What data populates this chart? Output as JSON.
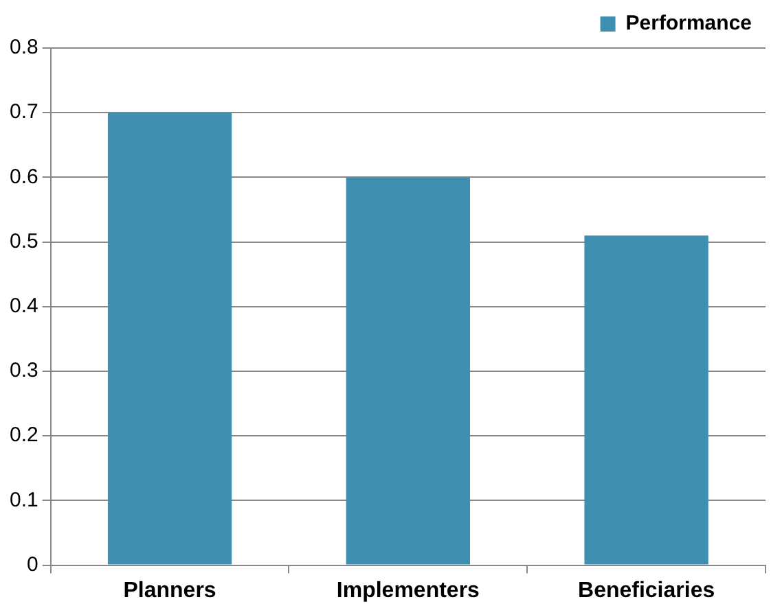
{
  "chart_data": {
    "type": "bar",
    "categories": [
      "Planners",
      "Implementers",
      "Beneficiaries"
    ],
    "series": [
      {
        "name": "Performance",
        "color": "#3f8fb0",
        "values": [
          0.7,
          0.6,
          0.51
        ]
      }
    ],
    "ylim": [
      0,
      0.8
    ],
    "yticks": [
      0,
      0.1,
      0.2,
      0.3,
      0.4,
      0.5,
      0.6,
      0.7,
      0.8
    ],
    "grid": "y",
    "legend": "top right"
  }
}
